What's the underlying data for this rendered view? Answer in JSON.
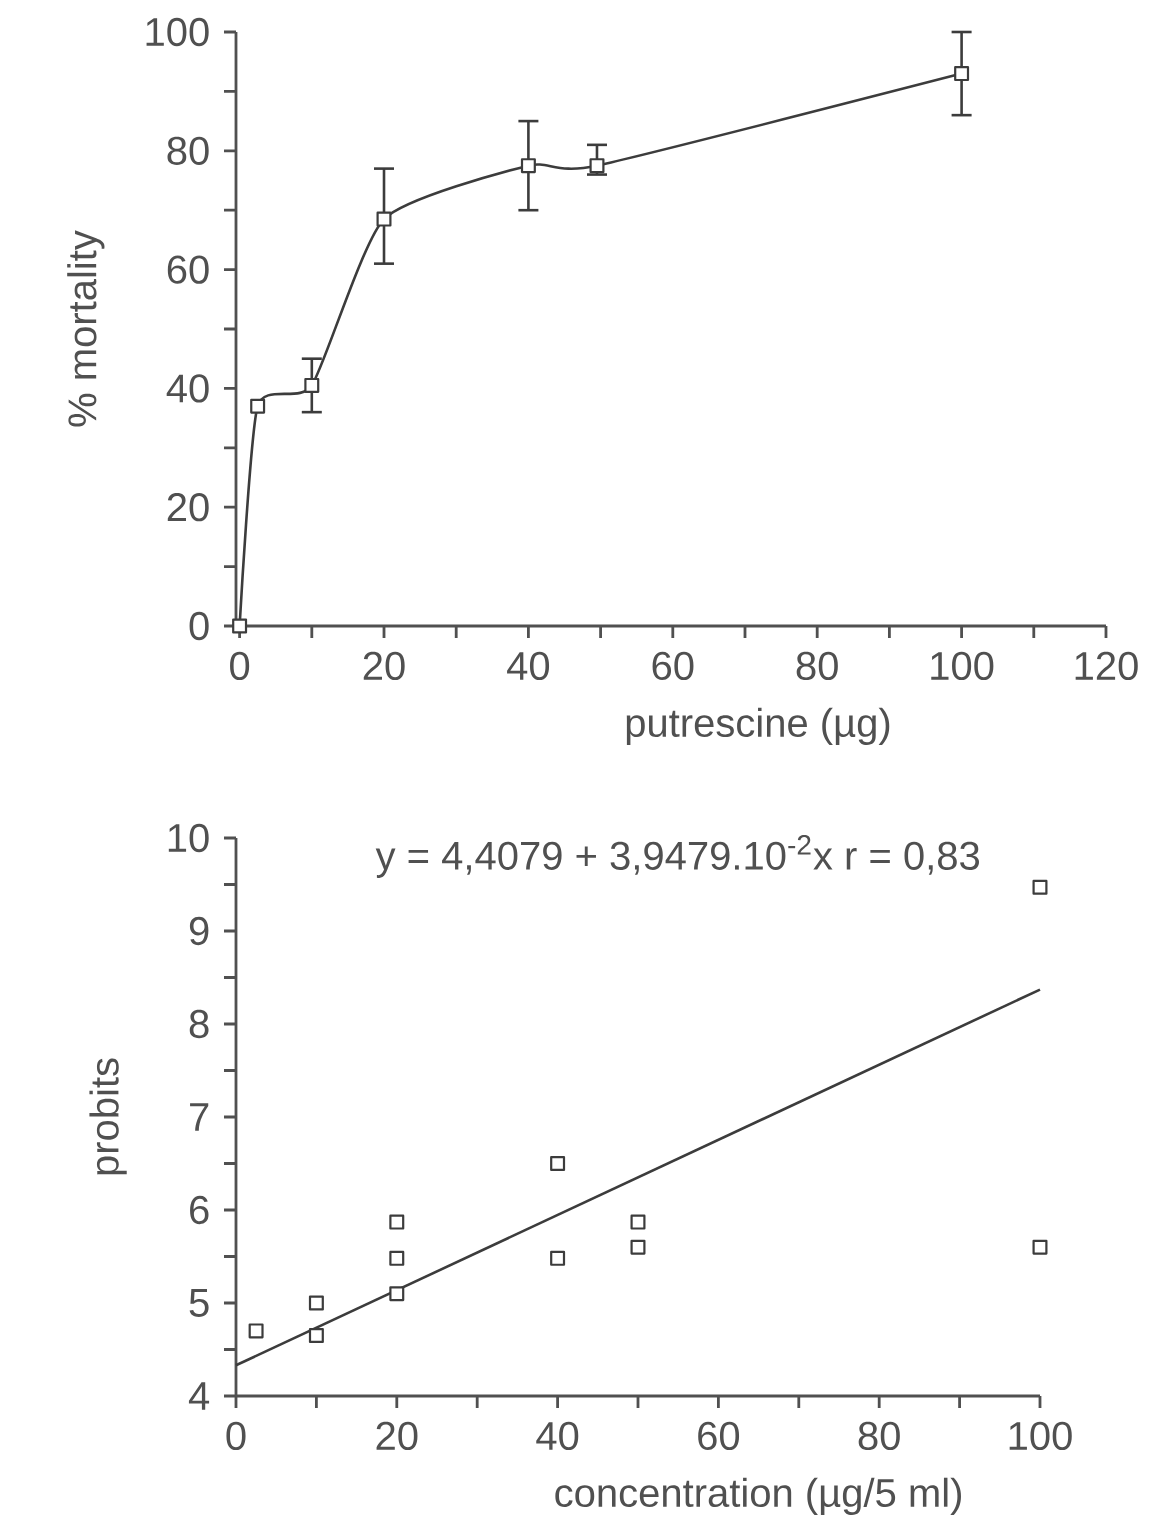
{
  "chart_data": [
    {
      "type": "line",
      "xlabel": "putrescine (µg)",
      "ylabel": "% mortality",
      "marker": "square",
      "line_style": "solid",
      "xlim": [
        -0.5,
        120
      ],
      "ylim": [
        0,
        100
      ],
      "xticks": [
        0,
        {
          "value": 10,
          "label": null
        },
        20,
        {
          "value": 30,
          "label": null
        },
        40,
        {
          "value": 50,
          "label": null
        },
        60,
        {
          "value": 70,
          "label": null
        },
        80,
        {
          "value": 90,
          "label": null
        },
        100,
        {
          "value": 110,
          "label": null
        },
        120
      ],
      "yticks": [
        0,
        {
          "value": 10,
          "label": null
        },
        20,
        {
          "value": 30,
          "label": null
        },
        40,
        {
          "value": 50,
          "label": null
        },
        60,
        {
          "value": 70,
          "label": null
        },
        80,
        {
          "value": 90,
          "label": null
        },
        100
      ],
      "series": [
        {
          "color": "#3c3c3c",
          "x": [
            0,
            2.5,
            10,
            20,
            40,
            49.5,
            100
          ],
          "values": [
            0,
            37,
            40.5,
            68.5,
            77.5,
            77.5,
            93
          ],
          "errors": [
            null,
            null,
            [
              36,
              45
            ],
            [
              61,
              77
            ],
            [
              70,
              85
            ],
            [
              76,
              81
            ],
            [
              86,
              100
            ]
          ]
        }
      ]
    },
    {
      "type": "scatter",
      "xlabel": "concentration (µg/5 ml)",
      "ylabel": "probits",
      "marker": "square",
      "annotations": [
        "y = 4,4079 + 3,9479.10$^{-2}$x  r = 0,83"
      ],
      "xlim": [
        0,
        100
      ],
      "ylim": [
        4,
        10
      ],
      "xticks": [
        0,
        {
          "value": 10,
          "label": null
        },
        20,
        {
          "value": 30,
          "label": null
        },
        40,
        {
          "value": 50,
          "label": null
        },
        60,
        {
          "value": 70,
          "label": null
        },
        80,
        {
          "value": 90,
          "label": null
        },
        100
      ],
      "yticks": [
        4,
        {
          "value": 4.5,
          "label": null
        },
        5,
        {
          "value": 5.5,
          "label": null
        },
        6,
        {
          "value": 6.5,
          "label": null
        },
        7,
        {
          "value": 7.5,
          "label": null
        },
        8,
        {
          "value": 8.5,
          "label": null
        },
        9,
        {
          "value": 9.5,
          "label": null
        },
        10
      ],
      "series": [
        {
          "type": "scatter",
          "color": "#3c3c3c",
          "x": [
            2.5,
            10,
            10,
            20,
            20,
            20,
            40,
            40,
            50,
            50,
            100,
            100
          ],
          "values": [
            4.7,
            5.0,
            4.65,
            5.87,
            5.48,
            5.1,
            6.5,
            5.48,
            5.87,
            5.6,
            9.47,
            5.6
          ]
        },
        {
          "type": "line",
          "color": "#3c3c3c",
          "marker": "none",
          "x": [
            0,
            100
          ],
          "values": [
            4.33,
            8.37
          ]
        }
      ]
    }
  ]
}
